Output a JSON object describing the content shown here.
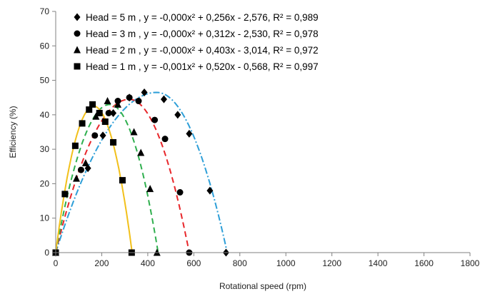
{
  "chart_data": {
    "type": "scatter",
    "title": "",
    "xlabel": "Rotational speed (rpm)",
    "ylabel": "Efficiency (%)",
    "xlim": [
      0,
      1800
    ],
    "ylim": [
      0,
      70
    ],
    "xticks": [
      0,
      200,
      400,
      600,
      800,
      1000,
      1200,
      1400,
      1600,
      1800
    ],
    "yticks": [
      0,
      10,
      20,
      30,
      40,
      50,
      60,
      70
    ],
    "xtick_labels": [
      "0",
      "200",
      "400",
      "600",
      "800",
      "1000",
      "1200",
      "1400",
      "1600",
      "1800"
    ],
    "ytick_labels": [
      "0",
      "10",
      "20",
      "30",
      "40",
      "50",
      "60",
      "70"
    ],
    "grid": false,
    "legend_position": "top-left",
    "series": [
      {
        "name": "Head = 5 m , y = -0,000x² + 0,256x - 2,576, R² = 0,989",
        "marker": "diamond",
        "line_color": "#2E9FD8",
        "line_style": "dash-dot",
        "points": [
          {
            "x": 0,
            "y": 0
          },
          {
            "x": 140,
            "y": 24.5
          },
          {
            "x": 205,
            "y": 34
          },
          {
            "x": 250,
            "y": 40.5
          },
          {
            "x": 320,
            "y": 45
          },
          {
            "x": 385,
            "y": 46.5
          },
          {
            "x": 470,
            "y": 44.5
          },
          {
            "x": 530,
            "y": 40
          },
          {
            "x": 580,
            "y": 34.5
          },
          {
            "x": 670,
            "y": 18
          },
          {
            "x": 740,
            "y": 0
          }
        ],
        "fit_x": [
          0,
          745
        ],
        "fit_peak": [
          440,
          46.5
        ]
      },
      {
        "name": "Head = 3 m , y = -0,000x² + 0,312x - 2,530, R² = 0,978",
        "marker": "circle",
        "line_color": "#E8262A",
        "line_style": "dashed",
        "points": [
          {
            "x": 0,
            "y": 0
          },
          {
            "x": 110,
            "y": 24
          },
          {
            "x": 170,
            "y": 34
          },
          {
            "x": 230,
            "y": 40.5
          },
          {
            "x": 270,
            "y": 44
          },
          {
            "x": 320,
            "y": 45
          },
          {
            "x": 360,
            "y": 44
          },
          {
            "x": 430,
            "y": 38.5
          },
          {
            "x": 475,
            "y": 33
          },
          {
            "x": 540,
            "y": 17.5
          },
          {
            "x": 580,
            "y": 0
          }
        ],
        "fit_x": [
          0,
          580
        ],
        "fit_peak": [
          320,
          44.5
        ]
      },
      {
        "name": "Head = 2 m , y = -0,000x² + 0,403x - 3,014, R² = 0,972",
        "marker": "triangle",
        "line_color": "#2FAF4E",
        "line_style": "dashed",
        "points": [
          {
            "x": 0,
            "y": 0
          },
          {
            "x": 90,
            "y": 21.5
          },
          {
            "x": 130,
            "y": 26
          },
          {
            "x": 175,
            "y": 39.5
          },
          {
            "x": 225,
            "y": 44
          },
          {
            "x": 270,
            "y": 43
          },
          {
            "x": 340,
            "y": 35
          },
          {
            "x": 370,
            "y": 29
          },
          {
            "x": 410,
            "y": 18.5
          },
          {
            "x": 440,
            "y": 0
          }
        ],
        "fit_x": [
          0,
          445
        ],
        "fit_peak": [
          235,
          43
        ]
      },
      {
        "name": "Head = 1 m , y = -0,001x² + 0,520x - 0,568, R² = 0,997",
        "marker": "square",
        "line_color": "#F2C01A",
        "line_style": "solid",
        "points": [
          {
            "x": 0,
            "y": 0
          },
          {
            "x": 40,
            "y": 17
          },
          {
            "x": 85,
            "y": 31
          },
          {
            "x": 115,
            "y": 37.5
          },
          {
            "x": 145,
            "y": 41.5
          },
          {
            "x": 160,
            "y": 43
          },
          {
            "x": 190,
            "y": 40.5
          },
          {
            "x": 215,
            "y": 38
          },
          {
            "x": 250,
            "y": 32
          },
          {
            "x": 290,
            "y": 21
          },
          {
            "x": 330,
            "y": 0
          }
        ],
        "fit_x": [
          0,
          332
        ],
        "fit_peak": [
          165,
          42.5
        ]
      }
    ]
  }
}
